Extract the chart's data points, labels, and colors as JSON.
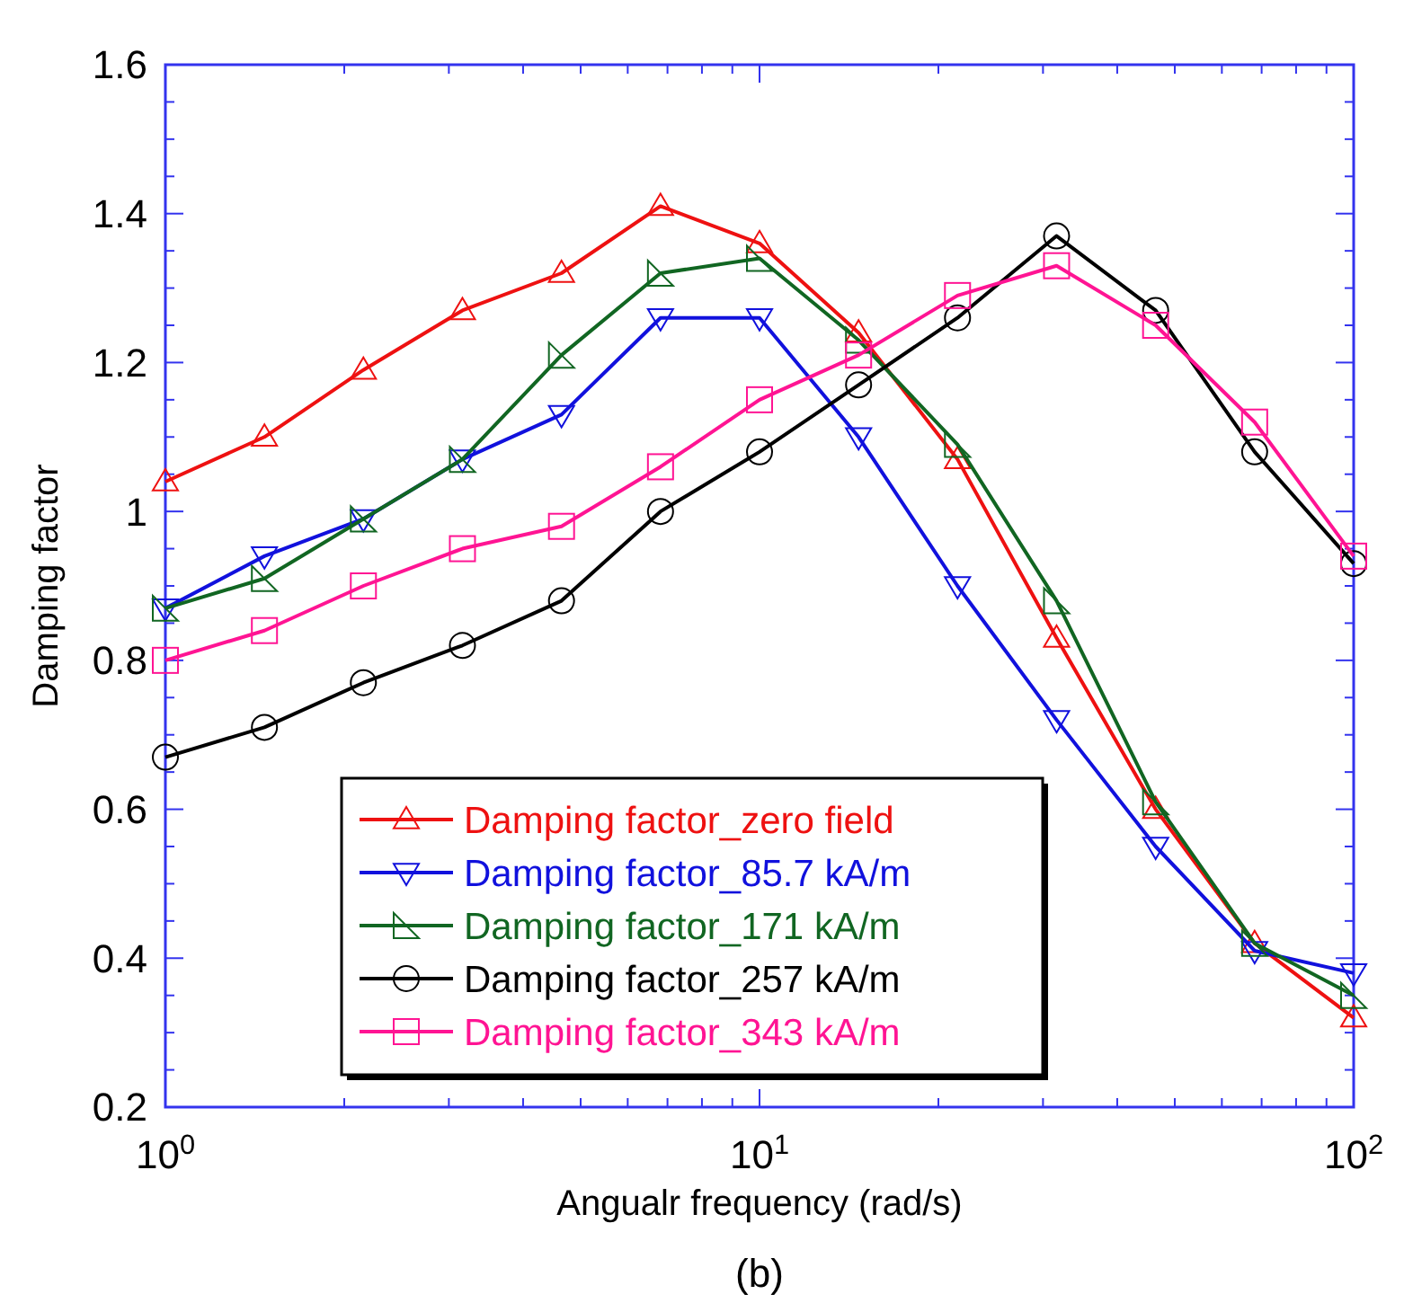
{
  "chart_data": {
    "type": "line",
    "xlabel": "Angualr frequency (rad/s)",
    "ylabel": "Damping factor",
    "log": "x",
    "x": [
      1,
      1.468,
      2.154,
      3.162,
      4.642,
      6.813,
      10,
      14.68,
      21.54,
      31.62,
      46.42,
      68.13,
      100
    ],
    "xlim": [
      1,
      100
    ],
    "ylim": [
      0.2,
      1.6
    ],
    "xticks": [
      {
        "value": 1,
        "label": "10$^{0}$"
      },
      {
        "value": 2,
        "label": null
      },
      {
        "value": 3,
        "label": null
      },
      {
        "value": 4,
        "label": null
      },
      {
        "value": 5,
        "label": null
      },
      {
        "value": 6,
        "label": null
      },
      {
        "value": 7,
        "label": null
      },
      {
        "value": 8,
        "label": null
      },
      {
        "value": 9,
        "label": null
      },
      {
        "value": 10,
        "label": "10$^{1}$"
      },
      {
        "value": 20,
        "label": null
      },
      {
        "value": 30,
        "label": null
      },
      {
        "value": 40,
        "label": null
      },
      {
        "value": 50,
        "label": null
      },
      {
        "value": 60,
        "label": null
      },
      {
        "value": 70,
        "label": null
      },
      {
        "value": 80,
        "label": null
      },
      {
        "value": 90,
        "label": null
      },
      {
        "value": 100,
        "label": "10$^{2}$"
      }
    ],
    "yticks": [
      0.2,
      {
        "value": 0.25,
        "label": null
      },
      {
        "value": 0.3,
        "label": null
      },
      {
        "value": 0.35,
        "label": null
      },
      0.4,
      {
        "value": 0.45,
        "label": null
      },
      {
        "value": 0.5,
        "label": null
      },
      {
        "value": 0.55,
        "label": null
      },
      0.6,
      {
        "value": 0.65,
        "label": null
      },
      {
        "value": 0.7,
        "label": null
      },
      {
        "value": 0.75,
        "label": null
      },
      0.8,
      {
        "value": 0.85,
        "label": null
      },
      {
        "value": 0.9,
        "label": null
      },
      {
        "value": 0.95,
        "label": null
      },
      {
        "value": 1,
        "label": "1"
      },
      {
        "value": 1.05,
        "label": null
      },
      {
        "value": 1.1,
        "label": null
      },
      {
        "value": 1.15,
        "label": null
      },
      1.2,
      {
        "value": 1.25,
        "label": null
      },
      {
        "value": 1.3,
        "label": null
      },
      {
        "value": 1.35,
        "label": null
      },
      1.4,
      {
        "value": 1.45,
        "label": null
      },
      {
        "value": 1.5,
        "label": null
      },
      {
        "value": 1.55,
        "label": null
      },
      1.6
    ],
    "grid": false,
    "legend": "bottom left",
    "line_style": "solid",
    "series": [
      {
        "name": "Damping factor_zero field",
        "color": "#ee1111",
        "marker": "triangle",
        "values": [
          1.04,
          1.1,
          1.19,
          1.27,
          1.32,
          1.41,
          1.36,
          1.24,
          1.07,
          0.83,
          0.6,
          0.42,
          0.32
        ]
      },
      {
        "name": "Damping factor_85.7 kA/m",
        "color": "#1111dd",
        "marker": "triangle-down",
        "values": [
          0.87,
          0.94,
          0.99,
          1.07,
          1.13,
          1.26,
          1.26,
          1.1,
          0.9,
          0.72,
          0.55,
          0.41,
          0.38
        ]
      },
      {
        "name": "Damping factor_171 kA/m",
        "color": "#116622",
        "marker": "triangle-right",
        "values": [
          0.87,
          0.91,
          0.99,
          1.07,
          1.21,
          1.32,
          1.34,
          1.23,
          1.09,
          0.88,
          0.61,
          0.42,
          0.35
        ]
      },
      {
        "name": "Damping factor_257 kA/m",
        "color": "#000000",
        "marker": "circle",
        "values": [
          0.67,
          0.71,
          0.77,
          0.82,
          0.88,
          1.0,
          1.08,
          1.17,
          1.26,
          1.37,
          1.27,
          1.08,
          0.93
        ]
      },
      {
        "name": "Damping factor_343 kA/m",
        "color": "#ff1493",
        "marker": "square",
        "values": [
          0.8,
          0.84,
          0.9,
          0.95,
          0.98,
          1.06,
          1.15,
          1.21,
          1.29,
          1.33,
          1.25,
          1.12,
          0.94
        ]
      }
    ],
    "annotations": [
      "(b)"
    ]
  }
}
